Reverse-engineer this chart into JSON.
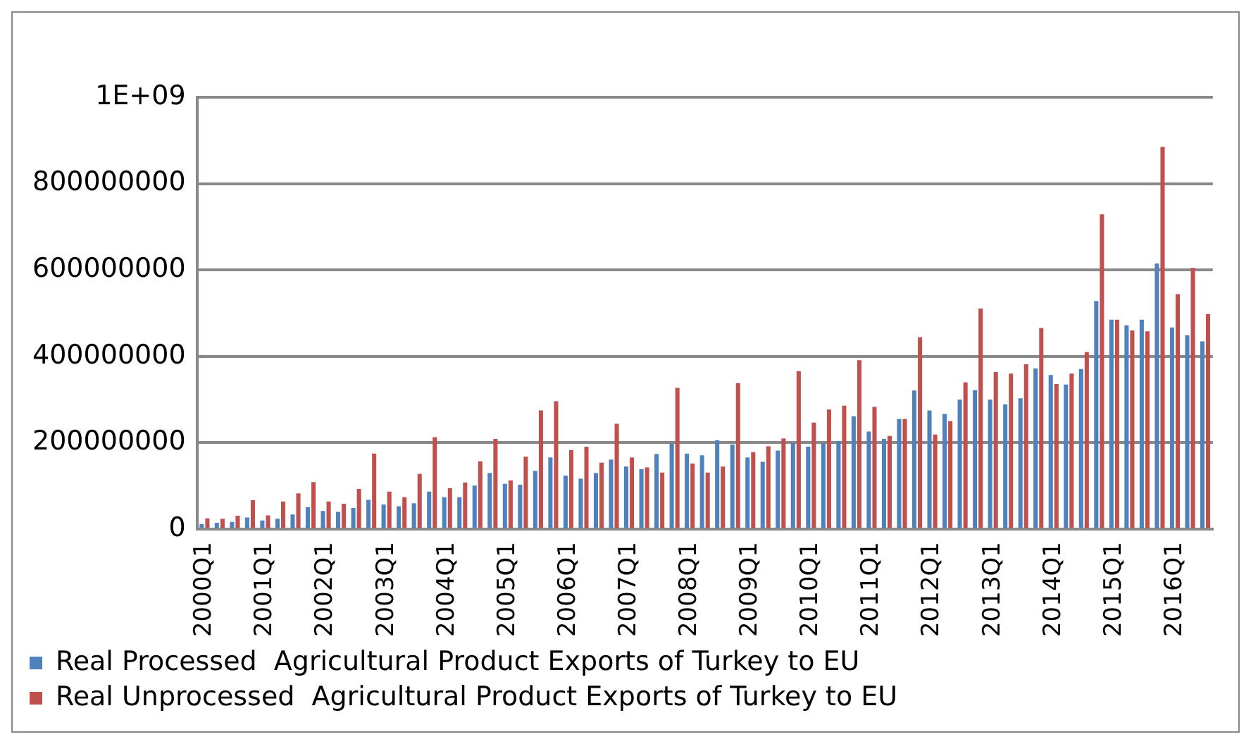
{
  "chart_data": {
    "type": "bar",
    "categories": [
      "2000Q1",
      null,
      null,
      null,
      "2001Q1",
      null,
      null,
      null,
      "2002Q1",
      null,
      null,
      null,
      "2003Q1",
      null,
      null,
      null,
      "2004Q1",
      null,
      null,
      null,
      "2005Q1",
      null,
      null,
      null,
      "2006Q1",
      null,
      null,
      null,
      "2007Q1",
      null,
      null,
      null,
      "2008Q1",
      null,
      null,
      null,
      "2009Q1",
      null,
      null,
      null,
      "2010Q1",
      null,
      null,
      null,
      "2011Q1",
      null,
      null,
      null,
      "2012Q1",
      null,
      null,
      null,
      "2013Q1",
      null,
      null,
      null,
      "2014Q1",
      null,
      null,
      null,
      "2015Q1",
      null,
      null,
      null,
      "2016Q1",
      null,
      null
    ],
    "series": [
      {
        "name": "Real Processed  Agricultural Product Exports of Turkey to EU",
        "color": "#4f81bd",
        "values": [
          12000000,
          15000000,
          17000000,
          27000000,
          20000000,
          24000000,
          34000000,
          51000000,
          42000000,
          40000000,
          49000000,
          68000000,
          57000000,
          53000000,
          60000000,
          87000000,
          74000000,
          74000000,
          101000000,
          130000000,
          105000000,
          103000000,
          135000000,
          166000000,
          124000000,
          117000000,
          130000000,
          161000000,
          145000000,
          139000000,
          174000000,
          198000000,
          175000000,
          171000000,
          206000000,
          196000000,
          166000000,
          156000000,
          182000000,
          199000000,
          191000000,
          199000000,
          204000000,
          261000000,
          226000000,
          209000000,
          255000000,
          321000000,
          275000000,
          267000000,
          300000000,
          322000000,
          300000000,
          289000000,
          303000000,
          372000000,
          357000000,
          335000000,
          371000000,
          528000000,
          485000000,
          472000000,
          485000000,
          615000000,
          467000000,
          449000000,
          435000000
        ]
      },
      {
        "name": "Real Unprocessed  Agricultural Product Exports of Turkey to EU",
        "color": "#c0504d",
        "values": [
          25000000,
          24000000,
          31000000,
          67000000,
          32000000,
          64000000,
          83000000,
          109000000,
          64000000,
          59000000,
          93000000,
          175000000,
          87000000,
          74000000,
          128000000,
          213000000,
          95000000,
          108000000,
          157000000,
          209000000,
          113000000,
          168000000,
          275000000,
          296000000,
          183000000,
          191000000,
          154000000,
          244000000,
          166000000,
          143000000,
          131000000,
          327000000,
          152000000,
          131000000,
          145000000,
          338000000,
          178000000,
          192000000,
          210000000,
          366000000,
          247000000,
          277000000,
          286000000,
          391000000,
          283000000,
          216000000,
          255000000,
          444000000,
          219000000,
          250000000,
          340000000,
          511000000,
          364000000,
          360000000,
          382000000,
          466000000,
          336000000,
          360000000,
          410000000,
          729000000,
          485000000,
          460000000,
          458000000,
          885000000,
          544000000,
          605000000,
          498000000
        ]
      }
    ],
    "ylim": [
      0,
      1000000000
    ],
    "yticks": [
      0,
      200000000,
      400000000,
      600000000,
      800000000,
      {
        "value": 1000000000,
        "label": "1E+09"
      }
    ],
    "grid": "y",
    "legend": "bottom"
  }
}
